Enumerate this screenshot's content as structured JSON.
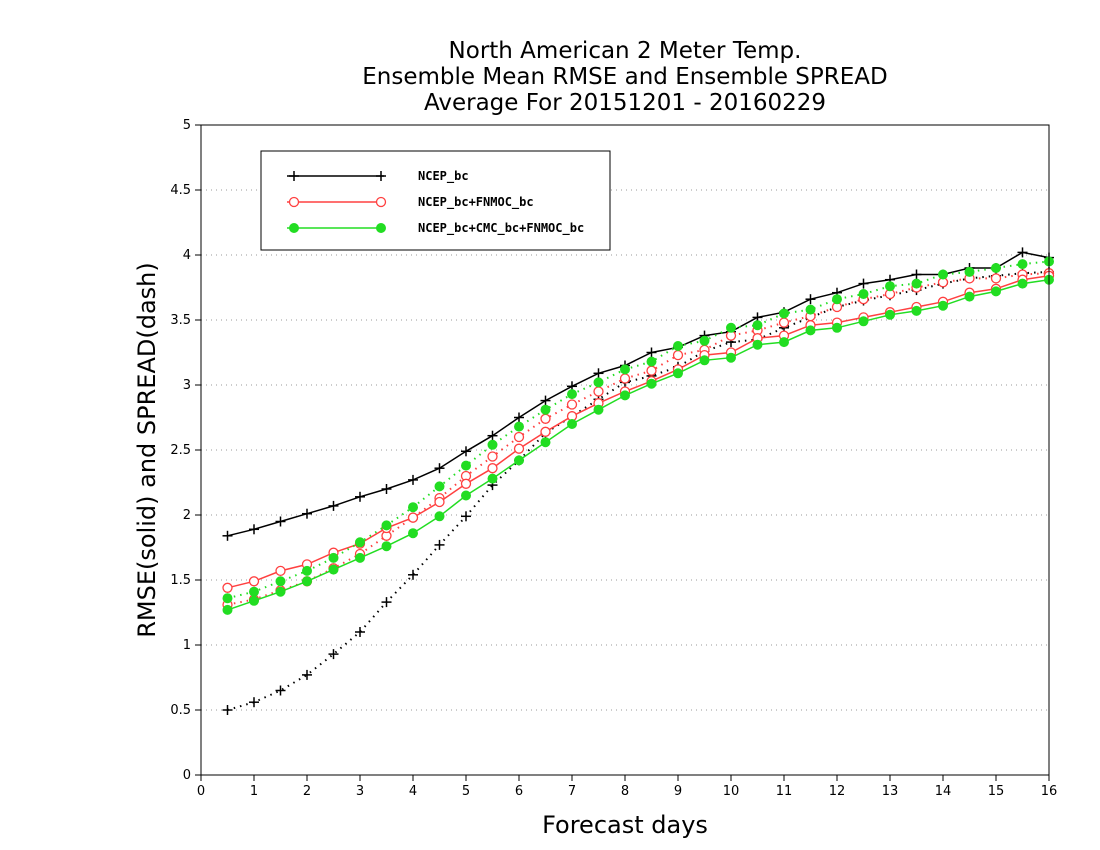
{
  "chart_data": {
    "type": "line",
    "title": [
      "North American 2 Meter Temp.",
      "Ensemble Mean RMSE and Ensemble SPREAD",
      "Average For 20151201 - 20160229"
    ],
    "xlabel": "Forecast days",
    "ylabel": "RMSE(solid) and SPREAD(dash)",
    "xlim": [
      0,
      16
    ],
    "ylim": [
      0,
      5
    ],
    "xticks": [
      "0",
      "1",
      "2",
      "3",
      "4",
      "5",
      "6",
      "7",
      "8",
      "9",
      "10",
      "11",
      "12",
      "13",
      "14",
      "15",
      "16"
    ],
    "yticks": [
      "0",
      "0.5",
      "1",
      "1.5",
      "2",
      "2.5",
      "3",
      "3.5",
      "4",
      "4.5",
      "5"
    ],
    "grid": "dotted-horizontal",
    "legend_position": "top-left",
    "x": [
      0.5,
      1,
      1.5,
      2,
      2.5,
      3,
      3.5,
      4,
      4.5,
      5,
      5.5,
      6,
      6.5,
      7,
      7.5,
      8,
      8.5,
      9,
      9.5,
      10,
      10.5,
      11,
      11.5,
      12,
      12.5,
      13,
      13.5,
      14,
      14.5,
      15,
      15.5,
      16
    ],
    "series": [
      {
        "name": "NCEP_bc",
        "color": "#000000",
        "marker": "plus",
        "rmse": [
          1.84,
          1.89,
          1.95,
          2.01,
          2.07,
          2.14,
          2.2,
          2.27,
          2.36,
          2.49,
          2.61,
          2.75,
          2.88,
          2.99,
          3.09,
          3.15,
          3.25,
          3.29,
          3.38,
          3.41,
          3.52,
          3.56,
          3.66,
          3.71,
          3.78,
          3.81,
          3.85,
          3.85,
          3.9,
          3.9,
          4.02,
          3.98
        ],
        "spread": [
          0.5,
          0.56,
          0.65,
          0.77,
          0.93,
          1.1,
          1.33,
          1.54,
          1.77,
          1.99,
          2.23,
          2.42,
          2.63,
          2.76,
          2.89,
          3.02,
          3.07,
          3.14,
          3.26,
          3.33,
          3.35,
          3.44,
          3.52,
          3.6,
          3.65,
          3.69,
          3.73,
          3.78,
          3.82,
          3.84,
          3.86,
          3.87
        ]
      },
      {
        "name": "NCEP_bc+FNMOC_bc",
        "color": "#ff4040",
        "marker": "open-circle",
        "rmse": [
          1.44,
          1.49,
          1.57,
          1.62,
          1.71,
          1.78,
          1.9,
          1.98,
          2.1,
          2.24,
          2.36,
          2.51,
          2.64,
          2.76,
          2.86,
          2.95,
          3.03,
          3.12,
          3.23,
          3.25,
          3.36,
          3.38,
          3.46,
          3.48,
          3.52,
          3.56,
          3.6,
          3.64,
          3.71,
          3.74,
          3.81,
          3.84
        ],
        "spread": [
          1.31,
          1.35,
          1.42,
          1.49,
          1.59,
          1.7,
          1.84,
          1.98,
          2.13,
          2.3,
          2.45,
          2.6,
          2.74,
          2.85,
          2.95,
          3.05,
          3.11,
          3.23,
          3.27,
          3.38,
          3.42,
          3.48,
          3.53,
          3.6,
          3.66,
          3.7,
          3.75,
          3.79,
          3.82,
          3.82,
          3.85,
          3.86
        ]
      },
      {
        "name": "NCEP_bc+CMC_bc+FNMOC_bc",
        "color": "#22dd22",
        "marker": "filled-circle",
        "rmse": [
          1.27,
          1.34,
          1.41,
          1.49,
          1.58,
          1.67,
          1.76,
          1.86,
          1.99,
          2.15,
          2.28,
          2.42,
          2.56,
          2.7,
          2.81,
          2.92,
          3.01,
          3.09,
          3.19,
          3.21,
          3.31,
          3.33,
          3.42,
          3.44,
          3.49,
          3.54,
          3.57,
          3.61,
          3.68,
          3.72,
          3.78,
          3.81
        ],
        "spread": [
          1.36,
          1.41,
          1.49,
          1.57,
          1.67,
          1.79,
          1.92,
          2.06,
          2.22,
          2.38,
          2.54,
          2.68,
          2.81,
          2.93,
          3.02,
          3.12,
          3.18,
          3.3,
          3.34,
          3.44,
          3.46,
          3.55,
          3.58,
          3.66,
          3.7,
          3.76,
          3.78,
          3.85,
          3.87,
          3.9,
          3.93,
          3.95
        ]
      }
    ]
  }
}
